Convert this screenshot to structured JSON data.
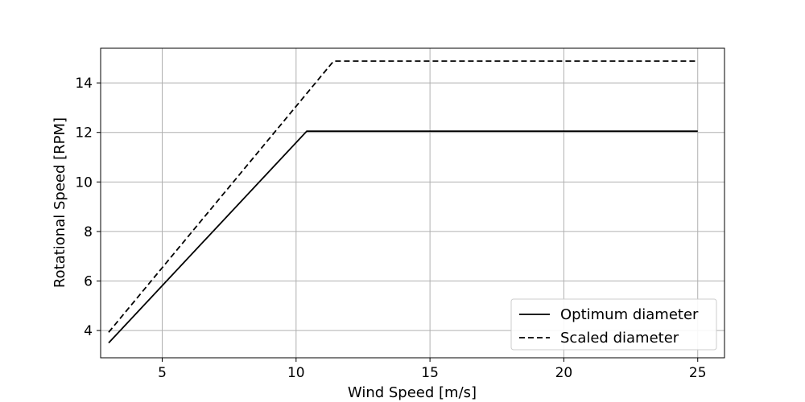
{
  "chart_data": {
    "type": "line",
    "title": "",
    "xlabel": "Wind Speed [m/s]",
    "ylabel": "Rotational Speed [RPM]",
    "xlim": [
      2.7,
      26.0
    ],
    "ylim": [
      2.9,
      15.4
    ],
    "xticks": [
      5,
      10,
      15,
      20,
      25
    ],
    "yticks": [
      4,
      6,
      8,
      10,
      12,
      14
    ],
    "grid": true,
    "legend_position": "lower-right",
    "series": [
      {
        "name": "Optimum diameter",
        "style": "solid",
        "color": "#000000",
        "x": [
          3.0,
          10.4,
          25.0
        ],
        "y": [
          3.5,
          12.05,
          12.05
        ]
      },
      {
        "name": "Scaled diameter",
        "style": "dashed",
        "color": "#000000",
        "x": [
          3.0,
          11.4,
          25.0
        ],
        "y": [
          3.93,
          14.88,
          14.88
        ]
      }
    ]
  }
}
